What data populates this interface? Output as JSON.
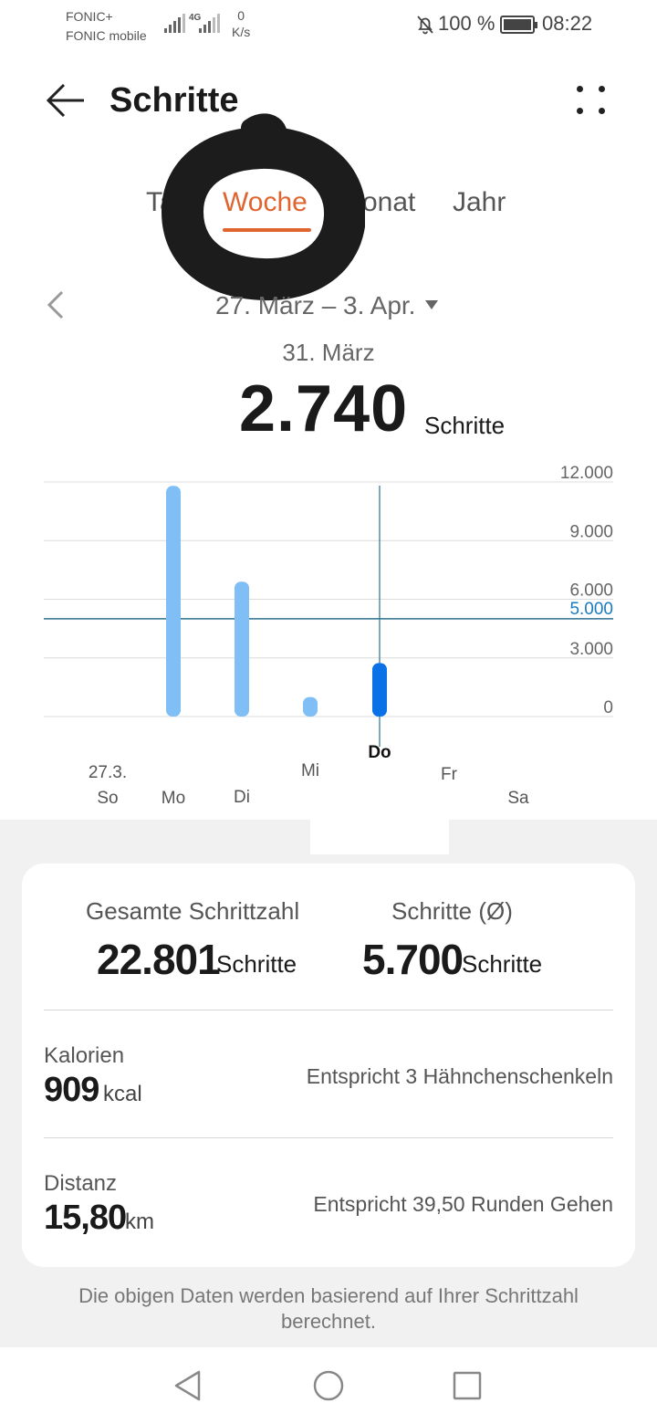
{
  "status_bar": {
    "carrier_line1": "FONIC+",
    "carrier_line2": "FONIC mobile",
    "network": "4G",
    "speed_value": "0",
    "speed_unit": "K/s",
    "battery": "100 %",
    "time": "08:22",
    "icons": [
      "signal-icon",
      "mute-bell-icon",
      "battery-icon"
    ]
  },
  "header": {
    "title": "Schritte",
    "back_icon": "arrow-left-icon",
    "menu_icon": "more-dots-icon"
  },
  "tabs": [
    {
      "label": "Tag",
      "active": false
    },
    {
      "label": "Woche",
      "active": true
    },
    {
      "label": "Monat",
      "active": false
    },
    {
      "label": "Jahr",
      "active": false
    }
  ],
  "range": {
    "label": "27. März – 3. Apr.",
    "selected_date": "31. März",
    "selected_value": "2.740",
    "selected_unit": "Schritte"
  },
  "chart_data": {
    "type": "bar",
    "categories": [
      "So",
      "Mo",
      "Di",
      "Mi",
      "Do",
      "Fr",
      "Sa"
    ],
    "date_label": "27.3.",
    "values": [
      0,
      11800,
      6900,
      1000,
      2740,
      0,
      0
    ],
    "selected_index": 4,
    "ylim": [
      0,
      12000
    ],
    "yticks": [
      "0",
      "3.000",
      "6.000",
      "9.000",
      "12.000"
    ],
    "goal": 5000,
    "goal_label": "5.000",
    "colors": {
      "bar": "#7fbff5",
      "bar_selected": "#0a72e6",
      "goal_line": "#2c7190",
      "cursor": "#2c7190"
    }
  },
  "summary": {
    "total_label": "Gesamte Schrittzahl",
    "total_value": "22.801",
    "total_unit": "Schritte",
    "avg_label": "Schritte (Ø)",
    "avg_value": "5.700",
    "avg_unit": "Schritte",
    "calories_label": "Kalorien",
    "calories_value": "909",
    "calories_unit": "kcal",
    "calories_note": "Entspricht 3 Hähnchenschenkeln",
    "distance_label": "Distanz",
    "distance_value": "15,80",
    "distance_unit": "km",
    "distance_note": "Entspricht 39,50 Runden Gehen",
    "footnote": "Die obigen Daten werden basierend auf Ihrer Schrittzahl berechnet."
  },
  "colors": {
    "accent": "#e0642e",
    "panel_bg": "#f1f1f1"
  }
}
